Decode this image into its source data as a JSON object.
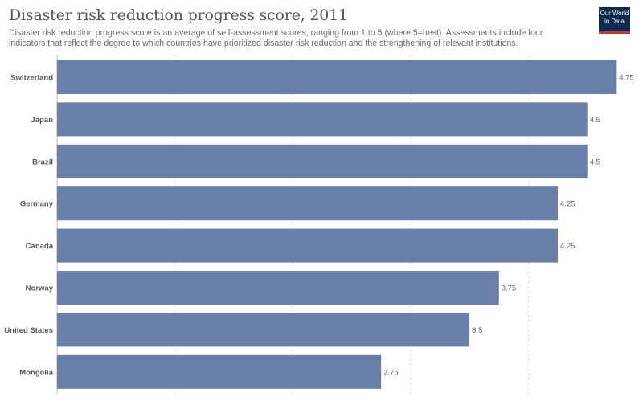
{
  "header": {
    "title": "Disaster risk reduction progress score, 2011",
    "subtitle": "Disaster risk reduction progress score is an average of self-assessment scores, ranging from 1 to 5 (where 5=best). Assessments include four indicators that reflect the degree to which countries have prioritized disaster risk reduction and the strengthening of relevant institutions.",
    "logo_line1": "Our World",
    "logo_line2": "in Data"
  },
  "colors": {
    "bar": "#6a7fa8",
    "grid": "#dddddd",
    "logo_bg": "#0d2a4f",
    "logo_accent": "#c0392b"
  },
  "chart_data": {
    "type": "bar",
    "orientation": "horizontal",
    "categories": [
      "Switzerland",
      "Japan",
      "Brazil",
      "Germany",
      "Canada",
      "Norway",
      "United States",
      "Mongolia"
    ],
    "values": [
      4.75,
      4.5,
      4.5,
      4.25,
      4.25,
      3.75,
      3.5,
      2.75
    ],
    "value_labels": [
      "4.75",
      "4.5",
      "4.5",
      "4.25",
      "4.25",
      "3.75",
      "3.5",
      "2.75"
    ],
    "xlim": [
      0,
      5
    ],
    "grid": true
  }
}
